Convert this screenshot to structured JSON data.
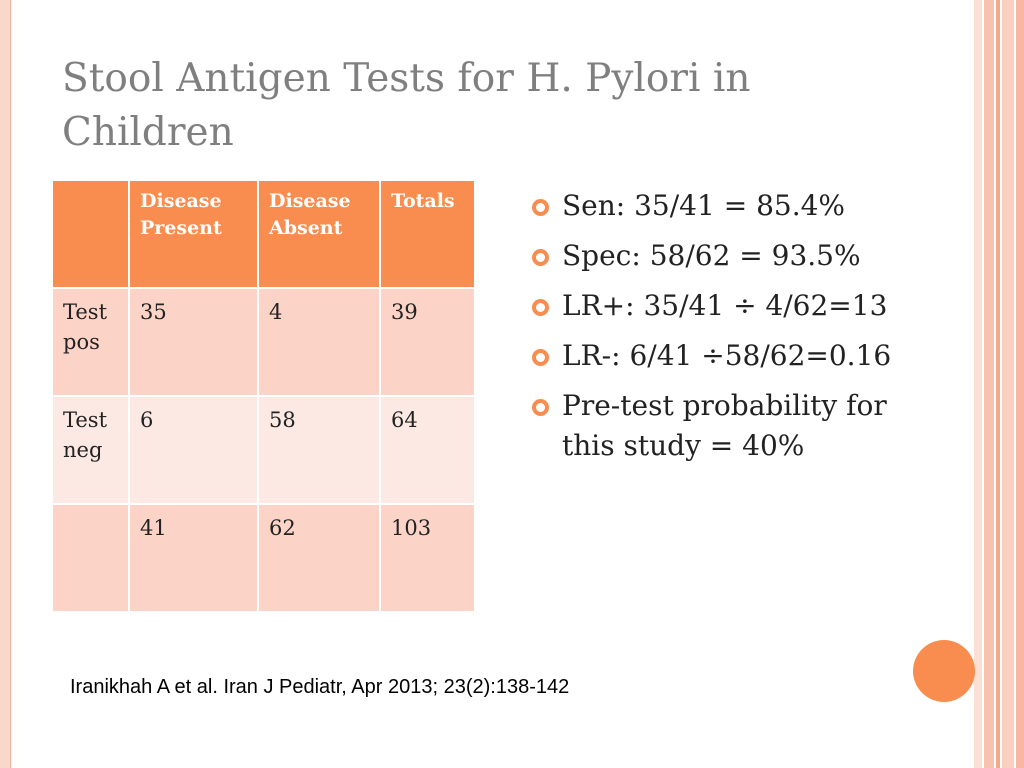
{
  "slide": {
    "title": "Stool Antigen Tests for H. Pylori in Children",
    "table": {
      "headers": [
        "",
        "Disease Present",
        "Disease Absent",
        "Totals"
      ],
      "rows": [
        [
          "Test pos",
          "35",
          "4",
          "39"
        ],
        [
          "Test neg",
          "6",
          "58",
          "64"
        ],
        [
          "",
          "41",
          "62",
          "103"
        ]
      ]
    },
    "bullets": [
      "Sen:   35/41 = 85.4%",
      "Spec:  58/62 = 93.5%",
      "LR+:  35/41 ÷ 4/62=13",
      "LR-:  6/41 ÷58/62=0.16",
      "Pre-test probability for this study = 40%"
    ],
    "citation": "Iranikhah A et al.  Iran J Pediatr, Apr 2013; 23(2):138-142"
  },
  "colors": {
    "accent": "#f98d4f",
    "row_light": "#fde9e4",
    "row_medium": "#fcd3c7",
    "title_gray": "#7f7f7f"
  }
}
